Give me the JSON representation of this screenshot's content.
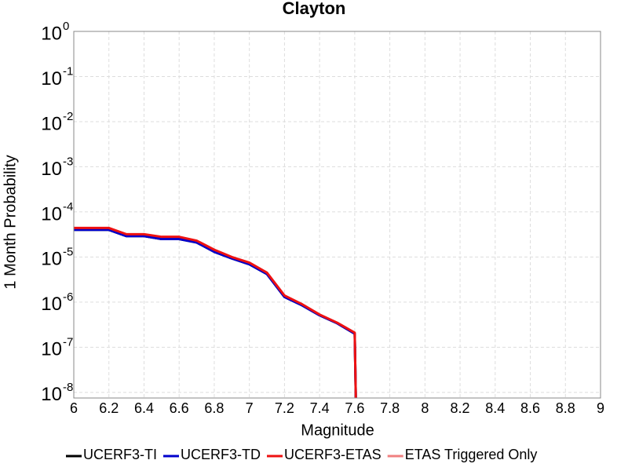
{
  "chart_data": {
    "type": "line",
    "title": "Clayton",
    "xlabel": "Magnitude",
    "ylabel": "1 Month Probability",
    "ylog": true,
    "grid": true,
    "legend": "bottom",
    "xlim": [
      6,
      9
    ],
    "xticks": [
      6,
      6.2,
      6.4,
      6.6,
      6.8,
      7,
      7.2,
      7.4,
      7.6,
      7.8,
      8,
      8.2,
      8.4,
      8.6,
      8.8,
      9
    ],
    "ylim": [
      7.5e-09,
      1
    ],
    "yticks": [
      {
        "value": 1,
        "label": "10",
        "exponent": "0"
      },
      {
        "value": 0.1,
        "label": "10",
        "exponent": "-1"
      },
      {
        "value": 0.01,
        "label": "10",
        "exponent": "-2"
      },
      {
        "value": 0.001,
        "label": "10",
        "exponent": "-3"
      },
      {
        "value": 0.0001,
        "label": "10",
        "exponent": "-4"
      },
      {
        "value": 1e-05,
        "label": "10",
        "exponent": "-5"
      },
      {
        "value": 1e-06,
        "label": "10",
        "exponent": "-6"
      },
      {
        "value": 1e-07,
        "label": "10",
        "exponent": "-7"
      },
      {
        "value": 1e-08,
        "label": "10",
        "exponent": "-8"
      }
    ],
    "x": [
      6.0,
      6.1,
      6.2,
      6.3,
      6.4,
      6.5,
      6.6,
      6.7,
      6.8,
      6.9,
      7.0,
      7.1,
      7.2,
      7.3,
      7.4,
      7.5,
      7.6,
      7.61
    ],
    "series": [
      {
        "name": "UCERF3-TI",
        "color": "#000000",
        "width": 3,
        "values": [
          4e-05,
          4e-05,
          4e-05,
          2.9e-05,
          2.9e-05,
          2.5e-05,
          2.5e-05,
          2.1e-05,
          1.3e-05,
          9.3e-06,
          6.9e-06,
          4.2e-06,
          1.3e-06,
          8.5e-07,
          5.1e-07,
          3.4e-07,
          2e-07,
          1e-09
        ]
      },
      {
        "name": "UCERF3-TD",
        "color": "#0000cc",
        "width": 3,
        "values": [
          4e-05,
          4e-05,
          4e-05,
          2.9e-05,
          2.9e-05,
          2.5e-05,
          2.5e-05,
          2.1e-05,
          1.3e-05,
          9.3e-06,
          6.9e-06,
          4.2e-06,
          1.3e-06,
          8.5e-07,
          5.1e-07,
          3.4e-07,
          2e-07,
          1e-09
        ]
      },
      {
        "name": "UCERF3-ETAS",
        "color": "#ee1111",
        "width": 3,
        "values": [
          4.4e-05,
          4.4e-05,
          4.4e-05,
          3.2e-05,
          3.2e-05,
          2.8e-05,
          2.8e-05,
          2.3e-05,
          1.45e-05,
          1e-05,
          7.5e-06,
          4.5e-06,
          1.4e-06,
          9e-07,
          5.3e-07,
          3.5e-07,
          2.1e-07,
          1e-09
        ]
      },
      {
        "name": "ETAS Triggered Only",
        "color": "#f08080",
        "width": 2,
        "values": [
          null,
          null,
          null,
          null,
          null,
          null,
          null,
          null,
          null,
          null,
          null,
          null,
          null,
          null,
          null,
          null,
          null,
          null
        ]
      }
    ]
  }
}
